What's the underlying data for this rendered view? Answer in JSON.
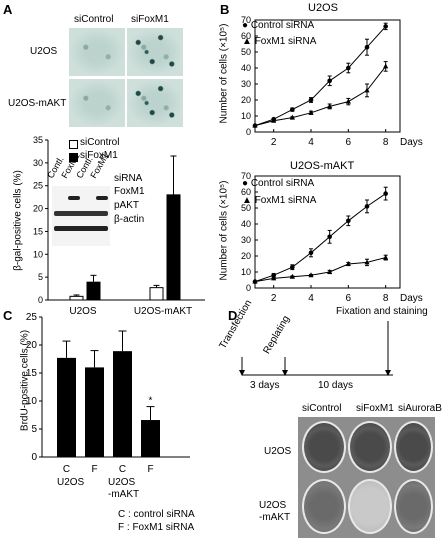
{
  "panels": {
    "A": "A",
    "B": "B",
    "C": "C",
    "D": "D"
  },
  "panelA": {
    "micro_cols": [
      "siControl",
      "siFoxM1"
    ],
    "micro_rows": [
      "U2OS",
      "U2OS-mAKT"
    ],
    "chart": {
      "ylabel": "β-gal-positive cells (%)",
      "legend": [
        "siControl",
        "siFoxM1"
      ],
      "blot_lanes": [
        "Contl.",
        "FoxM1",
        "Contl.",
        "FoxM1"
      ],
      "blot_labels": [
        "siRNA",
        "FoxM1",
        "pAKT",
        "β-actin"
      ]
    }
  },
  "panelB": {
    "top": {
      "title": "U2OS",
      "legend": [
        "Control siRNA",
        "FoxM1 siRNA"
      ],
      "ylabel": "Number of cells (×10⁵)",
      "xlabel": "Days"
    },
    "bottom": {
      "title": "U2OS-mAKT",
      "legend": [
        "Control siRNA",
        "FoxM1 siRNA"
      ],
      "ylabel": "Number of cells (×10⁵)",
      "xlabel": "Days"
    }
  },
  "panelC": {
    "ylabel": "BrdU-positive cells (%)",
    "group_labels": [
      "U2OS",
      "U2OS",
      "-mAKT"
    ],
    "star": "*",
    "footnote": [
      "C : control siRNA",
      "F : FoxM1 siRNA"
    ]
  },
  "panelD": {
    "timeline": [
      "Transfection",
      "Replating",
      "Fixation and staining"
    ],
    "durations": [
      "3 days",
      "10 days"
    ],
    "cols": [
      "siControl",
      "siFoxM1",
      "siAuroraB"
    ],
    "rows": [
      "U2OS",
      "U2OS\n-mAKT"
    ]
  },
  "chart_data": [
    {
      "type": "bar",
      "categories": [
        "U2OS",
        "U2OS-mAKT"
      ],
      "series": [
        {
          "name": "siControl",
          "values": [
            0.8,
            2.7
          ],
          "errors": [
            0.3,
            0.5
          ]
        },
        {
          "name": "siFoxM1",
          "values": [
            3.9,
            23
          ],
          "errors": [
            1.5,
            8.5
          ]
        }
      ],
      "ylabel": "β-gal-positive cells (%)",
      "ylim": [
        0,
        35
      ],
      "yticks": [
        0,
        5,
        10,
        15,
        20,
        25,
        30,
        35
      ]
    },
    {
      "type": "line",
      "title": "U2OS",
      "x": [
        1,
        2,
        3,
        4,
        5,
        6,
        7,
        8
      ],
      "series": [
        {
          "name": "Control siRNA",
          "values": [
            4,
            8,
            14,
            20,
            32,
            40,
            53,
            66
          ],
          "errors": [
            0,
            0.5,
            1,
            1.5,
            3,
            3,
            5,
            2
          ]
        },
        {
          "name": "FoxM1 siRNA",
          "values": [
            4,
            7,
            9,
            12,
            16,
            19,
            26,
            41
          ],
          "errors": [
            0,
            0.5,
            0.5,
            1,
            1.5,
            2,
            4,
            3
          ]
        }
      ],
      "ylabel": "Number of cells (×10⁵)",
      "xlabel": "Days",
      "ylim": [
        0,
        70
      ],
      "yticks": [
        0,
        10,
        20,
        30,
        40,
        50,
        60,
        70
      ],
      "xticks": [
        2,
        4,
        6,
        8
      ]
    },
    {
      "type": "line",
      "title": "U2OS-mAKT",
      "x": [
        1,
        2,
        3,
        4,
        5,
        6,
        7,
        8
      ],
      "series": [
        {
          "name": "Control siRNA",
          "values": [
            4,
            8,
            13,
            22,
            32,
            42,
            51,
            59
          ],
          "errors": [
            0,
            1,
            1.5,
            2.5,
            4,
            3,
            4,
            4
          ]
        },
        {
          "name": "FoxM1 siRNA",
          "values": [
            4,
            6,
            7,
            8,
            10,
            15,
            16,
            19
          ],
          "errors": [
            0,
            0.5,
            0.5,
            0.5,
            1,
            1,
            2,
            1.5
          ]
        }
      ],
      "ylabel": "Number of cells (×10⁵)",
      "xlabel": "Days",
      "ylim": [
        0,
        70
      ],
      "yticks": [
        0,
        10,
        20,
        30,
        40,
        50,
        60,
        70
      ],
      "xticks": [
        2,
        4,
        6,
        8
      ]
    },
    {
      "type": "bar",
      "categories": [
        "C",
        "F",
        "C",
        "F"
      ],
      "values": [
        17.7,
        16.0,
        18.9,
        6.6
      ],
      "errors": [
        3.0,
        3.0,
        3.6,
        2.4
      ],
      "ylabel": "BrdU-positive cells (%)",
      "ylim": [
        0,
        25
      ],
      "yticks": [
        0,
        5,
        10,
        15,
        20,
        25
      ]
    }
  ]
}
